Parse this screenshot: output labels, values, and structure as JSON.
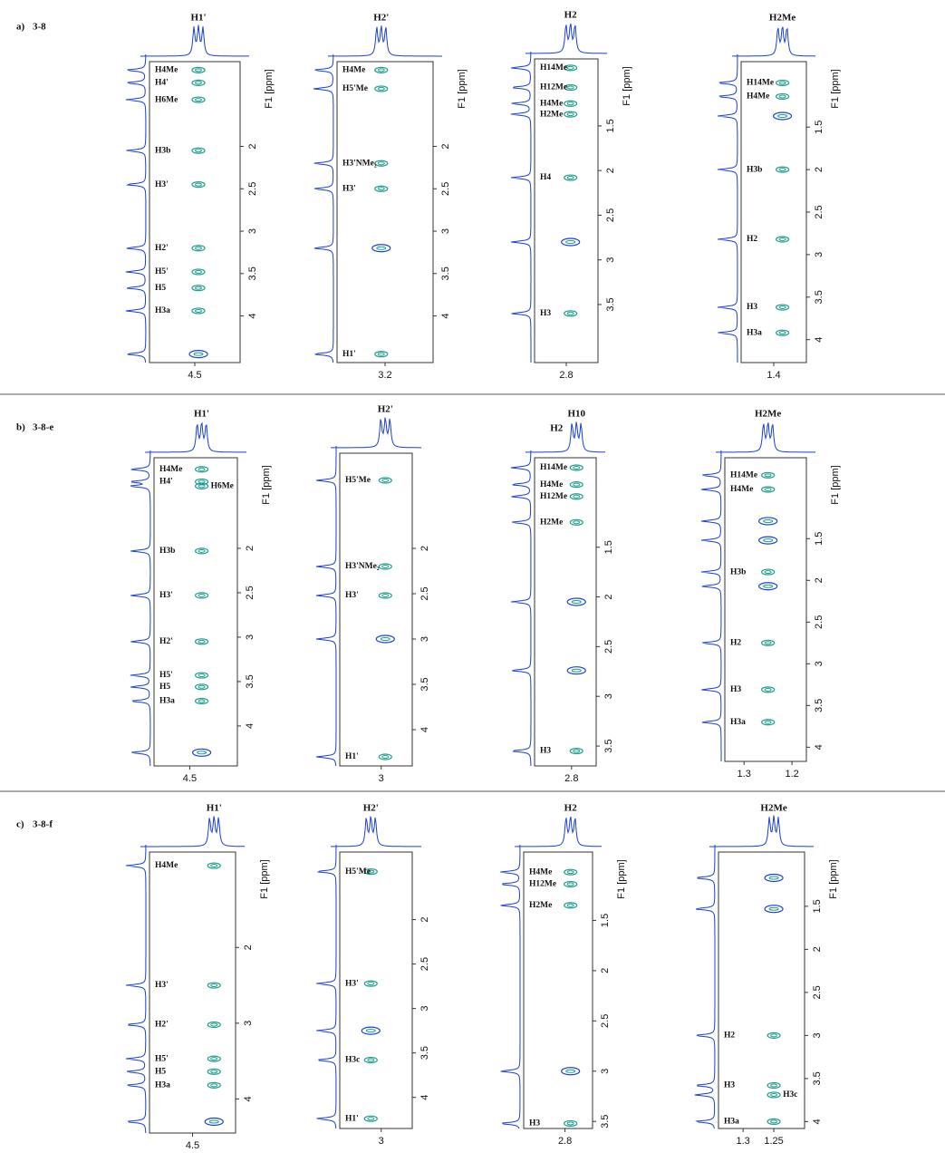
{
  "rows": [
    {
      "label": "a)",
      "sample": "3-8",
      "panels": [
        {
          "top_labels": [
            "H1'"
          ],
          "axis_label": "F1 [ppm]",
          "ylim": [
            1.0,
            4.55
          ],
          "yticks": [
            2.0,
            2.5,
            3.0,
            3.5,
            4.0
          ],
          "xlim": [
            4.75,
            4.25
          ],
          "xticks": [
            4.5
          ],
          "peak_x": 4.48,
          "peaks": [
            {
              "label": "H4Me",
              "y": 1.1
            },
            {
              "label": "H4'",
              "y": 1.25
            },
            {
              "label": "H6Me",
              "y": 1.45
            },
            {
              "label": "H3b",
              "y": 2.05
            },
            {
              "label": "H3'",
              "y": 2.45
            },
            {
              "label": "H2'",
              "y": 3.2
            },
            {
              "label": "H5'",
              "y": 3.48
            },
            {
              "label": "H5",
              "y": 3.67
            },
            {
              "label": "H3a",
              "y": 3.94
            },
            {
              "label": null,
              "y": 4.45
            }
          ]
        },
        {
          "top_labels": [
            "H2'"
          ],
          "axis_label": "F1 [ppm]",
          "ylim": [
            1.0,
            4.55
          ],
          "yticks": [
            2.0,
            2.5,
            3.0,
            3.5,
            4.0
          ],
          "xlim": [
            3.45,
            2.95
          ],
          "xticks": [
            3.2
          ],
          "peak_x": 3.22,
          "peaks": [
            {
              "label": "H4Me",
              "y": 1.1
            },
            {
              "label": "H5'Me",
              "y": 1.32
            },
            {
              "label": "H3'NMe₂",
              "y": 2.2
            },
            {
              "label": "H3'",
              "y": 2.5
            },
            {
              "label": null,
              "y": 3.2
            },
            {
              "label": "H1'",
              "y": 4.45
            }
          ]
        },
        {
          "top_labels": [
            "H2"
          ],
          "axis_label": "F1 [ppm]",
          "ylim": [
            0.75,
            4.15
          ],
          "yticks": [
            1.5,
            2.0,
            2.5,
            3.0,
            3.5
          ],
          "xlim": [
            2.95,
            2.65
          ],
          "xticks": [
            2.8
          ],
          "peak_x": 2.78,
          "peaks": [
            {
              "label": "H14Me",
              "y": 0.85
            },
            {
              "label": "H12Me",
              "y": 1.07
            },
            {
              "label": "H4Me",
              "y": 1.25
            },
            {
              "label": "H2Me",
              "y": 1.37
            },
            {
              "label": "H4",
              "y": 2.08
            },
            {
              "label": null,
              "y": 2.8
            },
            {
              "label": "H3",
              "y": 3.6
            }
          ]
        },
        {
          "top_labels": [
            "H2Me"
          ],
          "axis_label": "F1 [ppm]",
          "ylim": [
            0.73,
            4.27
          ],
          "yticks": [
            1.5,
            2.0,
            2.5,
            3.0,
            3.5,
            4.0
          ],
          "xlim": [
            1.55,
            1.25
          ],
          "xticks": [
            1.4
          ],
          "peak_x": 1.36,
          "peaks": [
            {
              "label": "H14Me",
              "y": 0.98
            },
            {
              "label": "H4Me",
              "y": 1.14
            },
            {
              "label": null,
              "y": 1.37
            },
            {
              "label": "H3b",
              "y": 2.0
            },
            {
              "label": "H2",
              "y": 2.82
            },
            {
              "label": "H3",
              "y": 3.62
            },
            {
              "label": "H3a",
              "y": 3.92
            }
          ]
        }
      ]
    },
    {
      "label": "b)",
      "sample": "3-8-e",
      "panels": [
        {
          "top_labels": [
            "H1'"
          ],
          "axis_label": "F1 [ppm]",
          "ylim": [
            0.98,
            4.45
          ],
          "yticks": [
            2.0,
            2.5,
            3.0,
            3.5,
            4.0
          ],
          "xlim": [
            4.65,
            4.3
          ],
          "xticks": [
            4.5
          ],
          "peak_x": 4.45,
          "peaks": [
            {
              "label": "H4Me",
              "y": 1.11
            },
            {
              "label": "H4'",
              "y": 1.25
            },
            {
              "label": "H6Me",
              "y": 1.3
            },
            {
              "label": "H3b",
              "y": 2.03
            },
            {
              "label": "H3'",
              "y": 2.53
            },
            {
              "label": "H2'",
              "y": 3.05
            },
            {
              "label": "H5'",
              "y": 3.43
            },
            {
              "label": "H5",
              "y": 3.56
            },
            {
              "label": "H3a",
              "y": 3.72
            },
            {
              "label": null,
              "y": 4.3
            }
          ]
        },
        {
          "top_labels": [
            "H2'"
          ],
          "ylim": [
            0.95,
            4.4
          ],
          "yticks": [
            2.0,
            2.5,
            3.0,
            3.5,
            4.0
          ],
          "xlim": [
            3.2,
            2.85
          ],
          "xticks": [
            3.0
          ],
          "peak_x": 2.98,
          "peaks": [
            {
              "label": "H5'Me",
              "y": 1.25
            },
            {
              "label": "H3'NMe₂",
              "y": 2.2
            },
            {
              "label": "H3'",
              "y": 2.52
            },
            {
              "label": null,
              "y": 3.0
            },
            {
              "label": "H1'",
              "y": 4.3
            }
          ]
        },
        {
          "top_labels": [
            "H10",
            "H2"
          ],
          "ylim": [
            0.6,
            3.7
          ],
          "yticks": [
            1.5,
            2.0,
            2.5,
            3.0,
            3.5
          ],
          "xlim": [
            2.95,
            2.7
          ],
          "xticks": [
            2.8
          ],
          "peak_x": 2.78,
          "peaks": [
            {
              "label": "H14Me",
              "y": 0.7
            },
            {
              "label": "H4Me",
              "y": 0.87
            },
            {
              "label": "H12Me",
              "y": 0.99
            },
            {
              "label": "H2Me",
              "y": 1.25
            },
            {
              "label": null,
              "y": 2.05
            },
            {
              "label": null,
              "y": 2.74
            },
            {
              "label": "H3",
              "y": 3.55
            }
          ]
        },
        {
          "top_labels": [
            "H2Me"
          ],
          "axis_label": "F1 [ppm]",
          "ylim": [
            0.53,
            4.17
          ],
          "yticks": [
            1.5,
            2.0,
            2.5,
            3.0,
            3.5,
            4.0
          ],
          "xlim": [
            1.34,
            1.17
          ],
          "xticks": [
            1.3,
            1.2
          ],
          "peak_x": 1.25,
          "peaks": [
            {
              "label": "H14Me",
              "y": 0.74
            },
            {
              "label": "H4Me",
              "y": 0.91
            },
            {
              "label": null,
              "y": 1.29
            },
            {
              "label": null,
              "y": 1.52
            },
            {
              "label": "H3b",
              "y": 1.9
            },
            {
              "label": null,
              "y": 2.07
            },
            {
              "label": "H2",
              "y": 2.75
            },
            {
              "label": "H3",
              "y": 3.31
            },
            {
              "label": "H3a",
              "y": 3.7
            }
          ]
        }
      ]
    },
    {
      "label": "c)",
      "sample": "3-8-f",
      "panels": [
        {
          "top_labels": [
            "H1'"
          ],
          "axis_label": "F1 [ppm]",
          "ylim": [
            0.74,
            4.45
          ],
          "yticks": [
            2,
            3,
            4
          ],
          "xlim": [
            4.7,
            4.3
          ],
          "xticks": [
            4.5
          ],
          "peak_x": 4.4,
          "peaks": [
            {
              "label": "H4Me",
              "y": 0.92
            },
            {
              "label": "H3'",
              "y": 2.5
            },
            {
              "label": "H2'",
              "y": 3.02
            },
            {
              "label": "H5'",
              "y": 3.47
            },
            {
              "label": "H5",
              "y": 3.64
            },
            {
              "label": "H3a",
              "y": 3.82
            },
            {
              "label": null,
              "y": 4.3
            }
          ]
        },
        {
          "top_labels": [
            "H2'"
          ],
          "ylim": [
            1.24,
            4.35
          ],
          "yticks": [
            2.0,
            2.5,
            3.0,
            3.5,
            4.0
          ],
          "xlim": [
            3.2,
            2.85
          ],
          "xticks": [
            3.0
          ],
          "peak_x": 3.05,
          "peaks": [
            {
              "label": "H5'Me",
              "y": 1.46
            },
            {
              "label": "H3'",
              "y": 2.72
            },
            {
              "label": null,
              "y": 3.25
            },
            {
              "label": "H3c",
              "y": 3.58
            },
            {
              "label": "H1'",
              "y": 4.24
            }
          ]
        },
        {
          "top_labels": [
            "H2"
          ],
          "axis_label": "F1 [ppm]",
          "ylim": [
            0.82,
            3.57
          ],
          "yticks": [
            1.5,
            2.0,
            2.5,
            3.0,
            3.5
          ],
          "xlim": [
            2.95,
            2.7
          ],
          "xticks": [
            2.8
          ],
          "peak_x": 2.78,
          "peaks": [
            {
              "label": "H4Me",
              "y": 1.02
            },
            {
              "label": "H12Me",
              "y": 1.14
            },
            {
              "label": "H2Me",
              "y": 1.35
            },
            {
              "label": null,
              "y": 3.0
            },
            {
              "label": "H3",
              "y": 3.52
            }
          ]
        },
        {
          "top_labels": [
            "H2Me"
          ],
          "axis_label": "F1 [ppm]",
          "ylim": [
            0.87,
            4.08
          ],
          "yticks": [
            1.5,
            2.0,
            2.5,
            3.0,
            3.5,
            4.0
          ],
          "xlim": [
            1.34,
            1.2
          ],
          "xticks": [
            1.3,
            1.25
          ],
          "peak_x": 1.25,
          "peaks": [
            {
              "label": null,
              "y": 1.17
            },
            {
              "label": null,
              "y": 1.53
            },
            {
              "label": "H2",
              "y": 3.0
            },
            {
              "label": "H3",
              "y": 3.58
            },
            {
              "label": "H3c",
              "y": 3.69
            },
            {
              "label": "H3a",
              "y": 4.0
            }
          ]
        }
      ]
    }
  ]
}
